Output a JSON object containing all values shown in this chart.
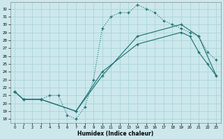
{
  "xlabel": "Humidex (Indice chaleur)",
  "bg_color": "#cce8ec",
  "grid_color": "#aad4d8",
  "line_color": "#1a7070",
  "xlim": [
    -0.5,
    23.5
  ],
  "ylim": [
    17.5,
    32.8
  ],
  "xticks": [
    0,
    1,
    2,
    3,
    4,
    5,
    6,
    7,
    8,
    9,
    10,
    11,
    12,
    13,
    14,
    15,
    16,
    17,
    18,
    19,
    20,
    21,
    22,
    23
  ],
  "yticks": [
    18,
    19,
    20,
    21,
    22,
    23,
    24,
    25,
    26,
    27,
    28,
    29,
    30,
    31,
    32
  ],
  "curve1_x": [
    0,
    1,
    3,
    4,
    5,
    6,
    7,
    8,
    9,
    10,
    11,
    12,
    13,
    14,
    15,
    16,
    17,
    18,
    19,
    20,
    21,
    22,
    23
  ],
  "curve1_y": [
    21.5,
    20.5,
    20.5,
    21.0,
    21.0,
    18.5,
    18.0,
    19.5,
    23.0,
    29.5,
    31.0,
    31.5,
    31.5,
    32.5,
    32.0,
    31.5,
    30.5,
    30.0,
    29.5,
    29.0,
    28.5,
    26.5,
    25.5
  ],
  "curve2_x": [
    0,
    1,
    3,
    7,
    10,
    14,
    19,
    20,
    21,
    22,
    23
  ],
  "curve2_y": [
    21.5,
    20.5,
    20.5,
    19.0,
    24.0,
    27.5,
    29.0,
    28.5,
    26.5,
    25.0,
    23.5
  ],
  "curve3_x": [
    0,
    1,
    3,
    7,
    10,
    14,
    19,
    21,
    23
  ],
  "curve3_y": [
    21.5,
    20.5,
    20.5,
    19.0,
    23.5,
    28.5,
    30.0,
    28.5,
    23.5
  ]
}
